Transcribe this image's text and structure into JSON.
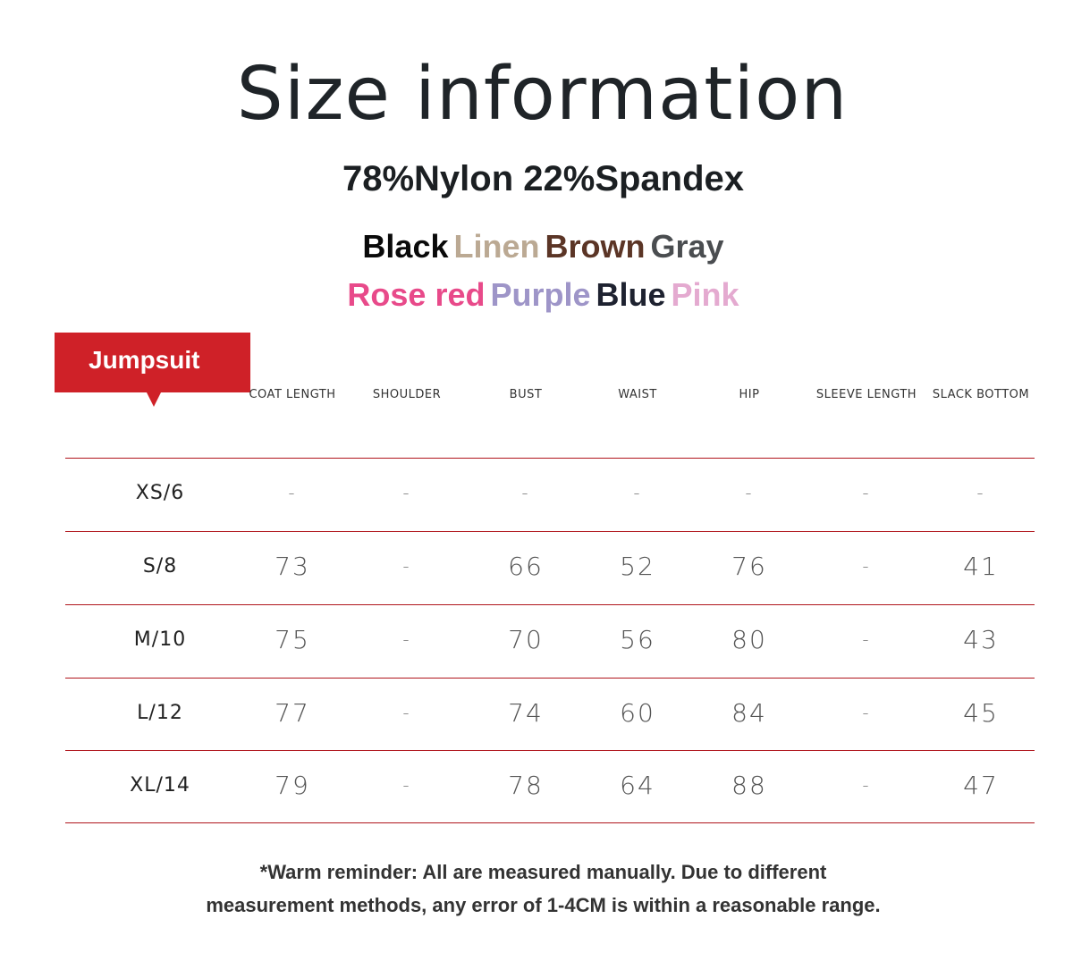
{
  "title": "Size information",
  "material": "78%Nylon 22%Spandex",
  "colors_row1": [
    {
      "name": "Black",
      "color": "#0a0a0a"
    },
    {
      "name": "Linen",
      "color": "#bba993"
    },
    {
      "name": "Brown",
      "color": "#5b3526"
    },
    {
      "name": "Gray",
      "color": "#4a4d50"
    }
  ],
  "colors_row2": [
    {
      "name": "Rose red",
      "color": "#e84a8a"
    },
    {
      "name": "Purple",
      "color": "#9e95c8"
    },
    {
      "name": "Blue",
      "color": "#1e2230"
    },
    {
      "name": "Pink",
      "color": "#e4aad0"
    }
  ],
  "category_tag": "Jumpsuit",
  "accent_color": "#cf2128",
  "columns": [
    "COAT LENGTH",
    "SHOULDER",
    "BUST",
    "WAIST",
    "HIP",
    "SLEEVE LENGTH",
    "SLACK BOTTOM"
  ],
  "rows": [
    {
      "size": "XS/6",
      "values": [
        "-",
        "-",
        "-",
        "-",
        "-",
        "-",
        "-"
      ]
    },
    {
      "size": "S/8",
      "values": [
        "73",
        "-",
        "66",
        "52",
        "76",
        "-",
        "41"
      ]
    },
    {
      "size": "M/10",
      "values": [
        "75",
        "-",
        "70",
        "56",
        "80",
        "-",
        "43"
      ]
    },
    {
      "size": "L/12",
      "values": [
        "77",
        "-",
        "74",
        "60",
        "84",
        "-",
        "45"
      ]
    },
    {
      "size": "XL/14",
      "values": [
        "79",
        "-",
        "78",
        "64",
        "88",
        "-",
        "47"
      ]
    }
  ],
  "note": {
    "line1": "*Warm reminder: All are measured manually. Due to different",
    "line2": "measurement methods, any error of 1-4CM is within a reasonable range."
  }
}
